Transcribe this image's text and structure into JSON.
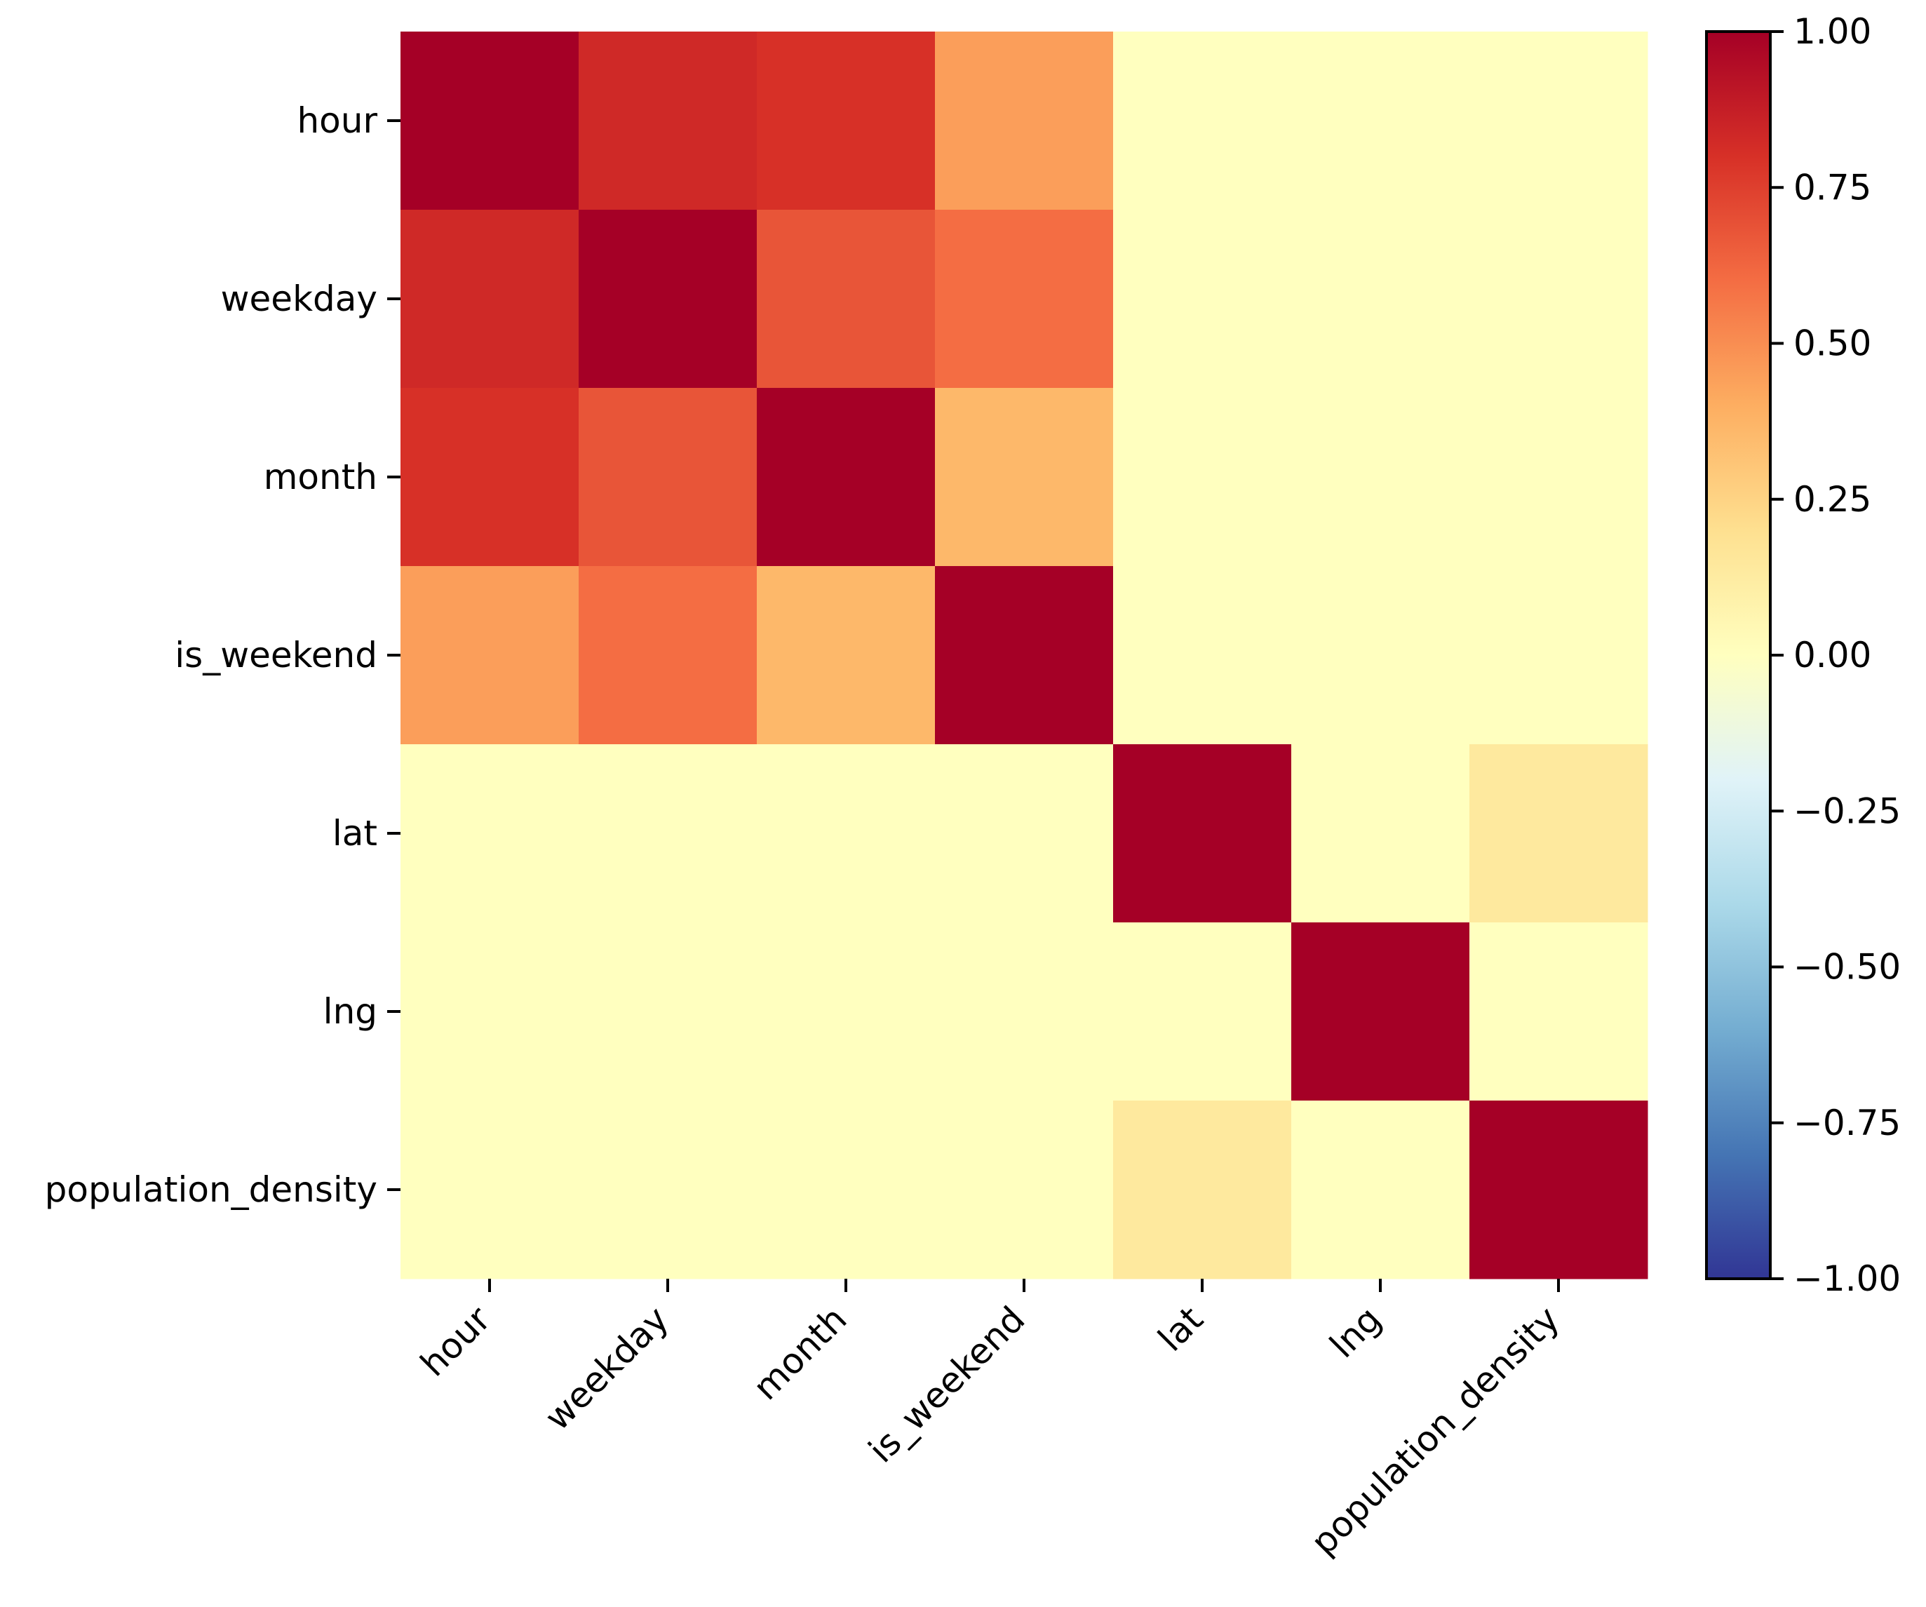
{
  "chart_data": {
    "type": "heatmap",
    "title": "",
    "xlabel": "",
    "ylabel": "",
    "x_categories": [
      "hour",
      "weekday",
      "month",
      "is_weekend",
      "lat",
      "lng",
      "population_density"
    ],
    "y_categories": [
      "hour",
      "weekday",
      "month",
      "is_weekend",
      "lat",
      "lng",
      "population_density"
    ],
    "values": [
      [
        1.0,
        0.83,
        0.8,
        0.45,
        0.0,
        0.0,
        0.0
      ],
      [
        0.83,
        1.0,
        0.68,
        0.6,
        0.0,
        0.0,
        0.0
      ],
      [
        0.8,
        0.68,
        1.0,
        0.36,
        0.0,
        0.0,
        0.0
      ],
      [
        0.45,
        0.6,
        0.36,
        1.0,
        0.0,
        0.0,
        0.0
      ],
      [
        0.0,
        0.0,
        0.0,
        0.0,
        1.0,
        0.0,
        0.14
      ],
      [
        0.0,
        0.0,
        0.0,
        0.0,
        0.0,
        1.0,
        0.0
      ],
      [
        0.0,
        0.0,
        0.0,
        0.0,
        0.14,
        0.0,
        1.0
      ]
    ],
    "colormap": "RdYlBu_r",
    "color_stops": [
      "#313695",
      "#4575b4",
      "#74add1",
      "#abd9e9",
      "#e0f3f8",
      "#ffffbf",
      "#fee090",
      "#fdae61",
      "#f46d43",
      "#d73027",
      "#a50026"
    ],
    "vmin": -1.0,
    "vmax": 1.0,
    "colorbar": {
      "ticks": [
        1.0,
        0.75,
        0.5,
        0.25,
        0.0,
        -0.25,
        -0.5,
        -0.75,
        -1.0
      ],
      "tick_labels": [
        "1.00",
        "0.75",
        "0.50",
        "0.25",
        "0.00",
        "−0.25",
        "−0.50",
        "−0.75",
        "−1.00"
      ],
      "placement": "right"
    },
    "grid": false,
    "x_tick_rotation": "45"
  }
}
